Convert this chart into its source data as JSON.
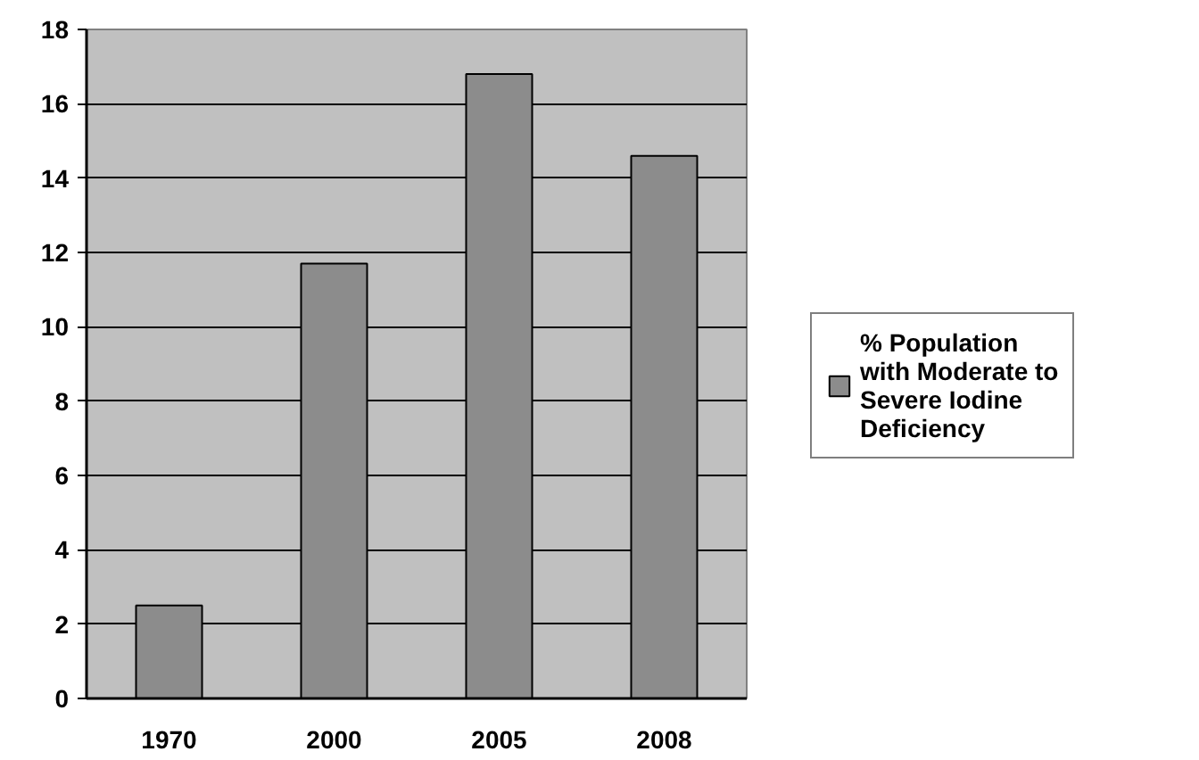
{
  "chart_data": {
    "type": "bar",
    "categories": [
      "1970",
      "2000",
      "2005",
      "2008"
    ],
    "series": [
      {
        "name": "% Population with Moderate to Severe Iodine Deficiency",
        "color": "#8c8c8c",
        "values": [
          2.5,
          11.7,
          16.8,
          14.6
        ]
      }
    ],
    "ylim": [
      0,
      18
    ],
    "yticks": [
      0,
      2,
      4,
      6,
      8,
      10,
      12,
      14,
      16,
      18
    ],
    "grid": "y",
    "legend": "right"
  }
}
